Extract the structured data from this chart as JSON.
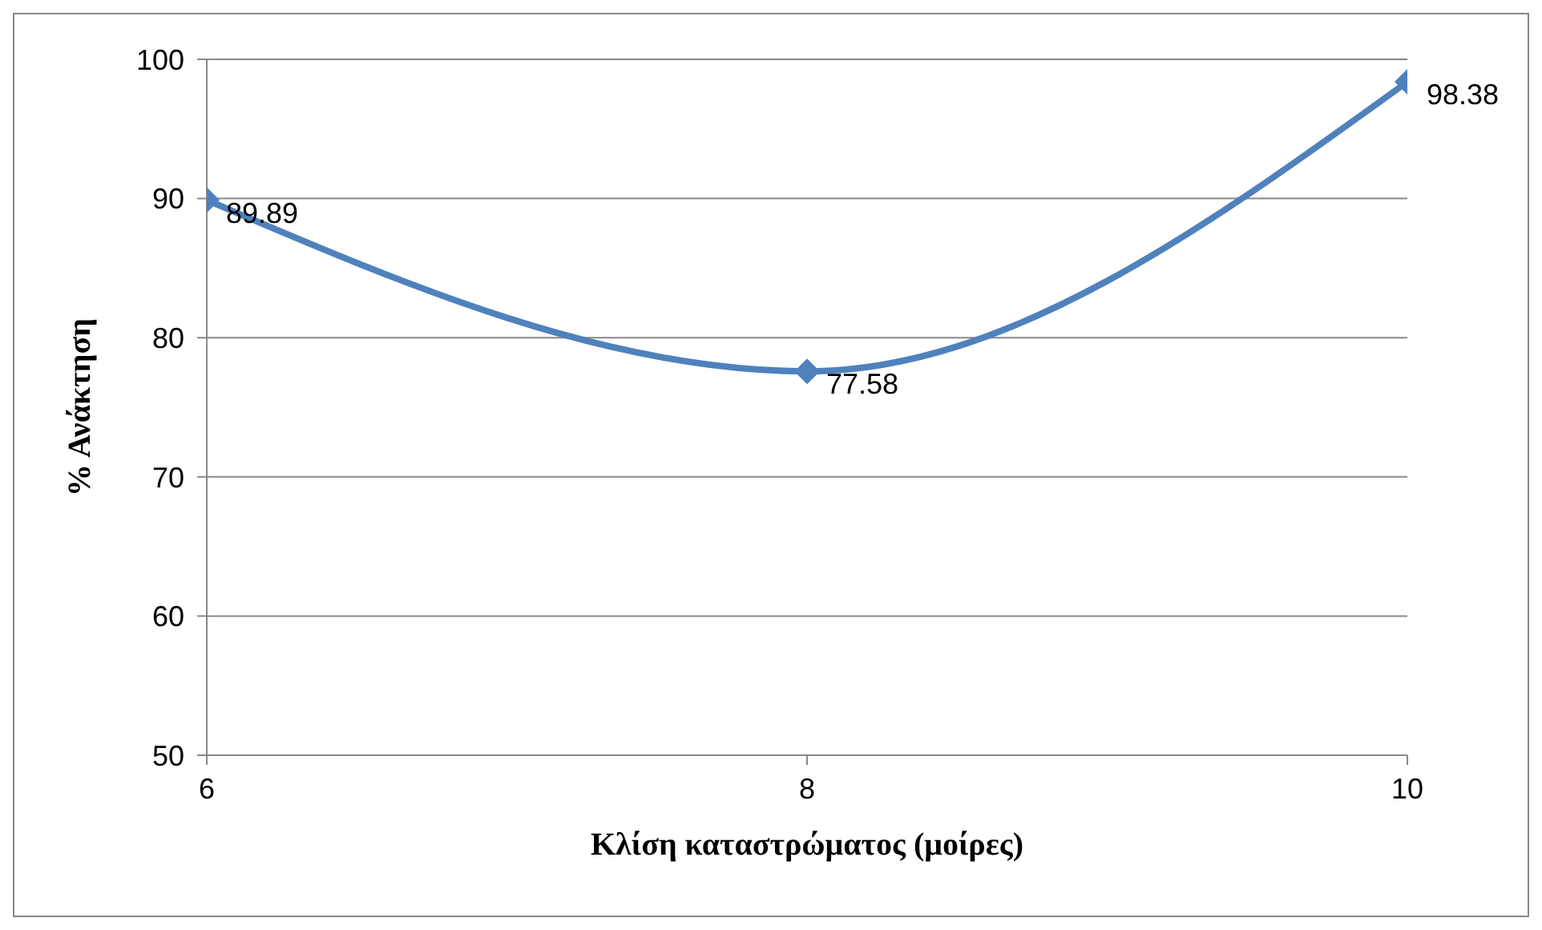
{
  "chart_data": {
    "type": "line",
    "xlabel": "Κλίση καταστρώματος (μοίρες)",
    "ylabel": "% Ανάκτηση",
    "x": [
      6,
      8,
      10
    ],
    "series": [
      {
        "color": "#4f81bd",
        "values": [
          89.89,
          77.58,
          98.38
        ]
      }
    ],
    "xlim": [
      6,
      10
    ],
    "xticks": [
      6,
      8,
      10
    ],
    "ylim": [
      50,
      100
    ],
    "yticks": [
      50,
      60,
      70,
      80,
      90,
      100
    ],
    "grid": "y",
    "marker": "diamond",
    "line_style": "solid",
    "data_labels": true
  }
}
